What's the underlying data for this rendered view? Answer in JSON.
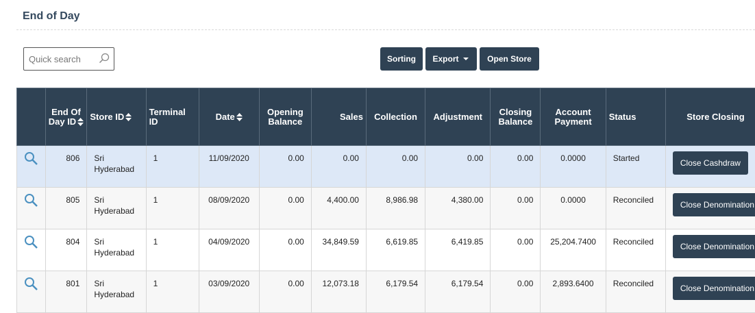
{
  "header": {
    "title": "End of Day"
  },
  "toolbar": {
    "search_placeholder": "Quick search",
    "buttons": [
      "Sorting",
      "Export",
      "Open Store"
    ]
  },
  "table": {
    "columns": [
      "End Of Day ID",
      "Store ID",
      "Terminal ID",
      "Date",
      "Opening Balance",
      "Sales",
      "Collection",
      "Adjustment",
      "Closing Balance",
      "Account Payment",
      "Status",
      "Store Closing"
    ],
    "rows": [
      [
        "806",
        "Sri Hyderabad",
        "1",
        "11/09/2020",
        "0.00",
        "0.00",
        "0.00",
        "0.00",
        "0.00",
        "0.0000",
        "Started",
        "Close Cashdraw"
      ],
      [
        "805",
        "Sri Hyderabad",
        "1",
        "08/09/2020",
        "0.00",
        "4,400.00",
        "8,986.98",
        "4,380.00",
        "0.00",
        "0.0000",
        "Reconciled",
        "Close Denomination"
      ],
      [
        "804",
        "Sri Hyderabad",
        "1",
        "04/09/2020",
        "0.00",
        "34,849.59",
        "6,619.85",
        "6,419.85",
        "0.00",
        "25,204.7400",
        "Reconciled",
        "Close Denomination"
      ],
      [
        "801",
        "Sri Hyderabad",
        "1",
        "03/09/2020",
        "0.00",
        "12,073.18",
        "6,179.54",
        "6,179.54",
        "0.00",
        "2,893.6400",
        "Reconciled",
        "Close Denomination"
      ]
    ]
  }
}
